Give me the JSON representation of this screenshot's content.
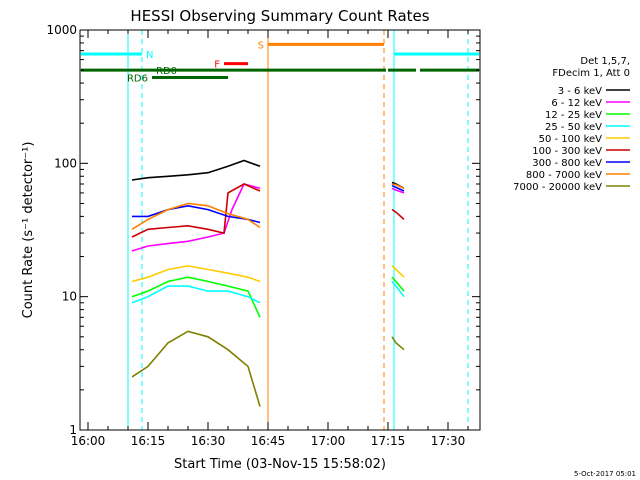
{
  "chart_data": {
    "type": "line",
    "title": "HESSI Observing Summary Count Rates",
    "xlabel": "Start Time (03-Nov-15 15:58:02)",
    "ylabel": "Count Rate (s⁻¹ detector⁻¹)",
    "yscale": "log",
    "ylim": [
      1,
      1000
    ],
    "xlim_min": [
      -2,
      98
    ],
    "x_ticks": [
      {
        "m": 0,
        "label": "16:00"
      },
      {
        "m": 15,
        "label": "16:15"
      },
      {
        "m": 30,
        "label": "16:30"
      },
      {
        "m": 45,
        "label": "16:45"
      },
      {
        "m": 60,
        "label": "17:00"
      },
      {
        "m": 75,
        "label": "17:15"
      },
      {
        "m": 90,
        "label": "17:30"
      }
    ],
    "y_ticks": [
      {
        "v": 1,
        "label": "1"
      },
      {
        "v": 10,
        "label": "10"
      },
      {
        "v": 100,
        "label": "100"
      },
      {
        "v": 1000,
        "label": "1000"
      }
    ],
    "legend_header": [
      "Det 1,5,7,",
      "FDecim 1, Att 0"
    ],
    "legend_position": "right",
    "footer": "5-Oct-2017 05:01",
    "series": [
      {
        "name": "3 - 6 keV",
        "color": "#000000",
        "segments": [
          [
            [
              11,
              75
            ],
            [
              15,
              78
            ],
            [
              20,
              80
            ],
            [
              25,
              82
            ],
            [
              30,
              85
            ],
            [
              35,
              95
            ],
            [
              39,
              105
            ],
            [
              43,
              95
            ]
          ],
          [
            [
              76,
              72
            ],
            [
              77,
              70
            ],
            [
              79,
              65
            ]
          ]
        ]
      },
      {
        "name": "6 - 12 keV",
        "color": "#ff00ff",
        "segments": [
          [
            [
              11,
              22
            ],
            [
              15,
              24
            ],
            [
              20,
              25
            ],
            [
              25,
              26
            ],
            [
              30,
              28
            ],
            [
              34,
              30
            ],
            [
              36,
              45
            ],
            [
              39,
              70
            ],
            [
              43,
              65
            ]
          ],
          [
            [
              76,
              65
            ],
            [
              77,
              63
            ],
            [
              79,
              60
            ]
          ]
        ]
      },
      {
        "name": "12 - 25 keV",
        "color": "#00ff00",
        "segments": [
          [
            [
              11,
              10
            ],
            [
              15,
              11
            ],
            [
              20,
              13
            ],
            [
              25,
              14
            ],
            [
              30,
              13
            ],
            [
              35,
              12
            ],
            [
              40,
              11
            ],
            [
              43,
              7
            ]
          ],
          [
            [
              76,
              14
            ],
            [
              77,
              13
            ],
            [
              79,
              11
            ]
          ]
        ]
      },
      {
        "name": "25 - 50 keV",
        "color": "#00ffff",
        "segments": [
          [
            [
              11,
              9
            ],
            [
              15,
              10
            ],
            [
              20,
              12
            ],
            [
              25,
              12
            ],
            [
              30,
              11
            ],
            [
              35,
              11
            ],
            [
              40,
              10
            ],
            [
              43,
              9
            ]
          ],
          [
            [
              76,
              13
            ],
            [
              77,
              12
            ],
            [
              79,
              10
            ]
          ]
        ]
      },
      {
        "name": "50 - 100 keV",
        "color": "#ffcc00",
        "segments": [
          [
            [
              11,
              13
            ],
            [
              15,
              14
            ],
            [
              20,
              16
            ],
            [
              25,
              17
            ],
            [
              30,
              16
            ],
            [
              35,
              15
            ],
            [
              40,
              14
            ],
            [
              43,
              13
            ]
          ],
          [
            [
              76,
              17
            ],
            [
              77,
              16
            ],
            [
              79,
              14
            ]
          ]
        ]
      },
      {
        "name": "100 - 300 keV",
        "color": "#cc0000",
        "segments": [
          [
            [
              11,
              28
            ],
            [
              15,
              32
            ],
            [
              20,
              33
            ],
            [
              25,
              34
            ],
            [
              30,
              32
            ],
            [
              34,
              30
            ],
            [
              35,
              60
            ],
            [
              39,
              70
            ],
            [
              43,
              62
            ]
          ],
          [
            [
              76,
              45
            ],
            [
              77,
              43
            ],
            [
              79,
              38
            ]
          ]
        ]
      },
      {
        "name": "300 - 800 keV",
        "color": "#0000ff",
        "segments": [
          [
            [
              11,
              40
            ],
            [
              15,
              40
            ],
            [
              20,
              45
            ],
            [
              25,
              48
            ],
            [
              30,
              45
            ],
            [
              35,
              40
            ],
            [
              40,
              38
            ],
            [
              43,
              36
            ]
          ],
          [
            [
              76,
              68
            ],
            [
              77,
              66
            ],
            [
              79,
              62
            ]
          ]
        ]
      },
      {
        "name": "800 - 7000 keV",
        "color": "#ff8000",
        "segments": [
          [
            [
              11,
              32
            ],
            [
              15,
              38
            ],
            [
              20,
              45
            ],
            [
              25,
              50
            ],
            [
              30,
              48
            ],
            [
              35,
              42
            ],
            [
              40,
              38
            ],
            [
              43,
              33
            ]
          ],
          [
            [
              76,
              70
            ],
            [
              77,
              69
            ],
            [
              79,
              65
            ]
          ]
        ]
      },
      {
        "name": "7000 - 20000 keV",
        "color": "#808000",
        "segments": [
          [
            [
              11,
              2.5
            ],
            [
              15,
              3
            ],
            [
              20,
              4.5
            ],
            [
              25,
              5.5
            ],
            [
              30,
              5
            ],
            [
              35,
              4
            ],
            [
              40,
              3
            ],
            [
              43,
              1.5
            ]
          ],
          [
            [
              76,
              5
            ],
            [
              77,
              4.5
            ],
            [
              79,
              4
            ]
          ]
        ]
      }
    ],
    "flags": [
      {
        "label": "N",
        "color": "#00ffff",
        "y": 660,
        "segments": [
          [
            -2,
            13.5
          ],
          [
            76.5,
            98
          ]
        ]
      },
      {
        "label": "F",
        "color": "#ff0000",
        "y": 560,
        "segments": [
          [
            34,
            40
          ]
        ]
      },
      {
        "label": "S",
        "color": "#ff8000",
        "y": 780,
        "segments": [
          [
            45,
            74
          ]
        ]
      },
      {
        "label": "RD0",
        "color": "#006400",
        "y": 500,
        "segments": [
          [
            -2,
            74.5
          ],
          [
            75,
            82
          ],
          [
            83,
            98
          ]
        ]
      },
      {
        "label": "RD6",
        "color": "#006400",
        "y": 440,
        "segments": [
          [
            16,
            35
          ]
        ]
      }
    ],
    "vlines": [
      {
        "m": 10,
        "color": "#00ffff",
        "dash": false
      },
      {
        "m": 13.5,
        "color": "#00ffff",
        "dash": true
      },
      {
        "m": 45,
        "color": "#ff8000",
        "dash": false
      },
      {
        "m": 74,
        "color": "#ff8000",
        "dash": true
      },
      {
        "m": 76.5,
        "color": "#00ffff",
        "dash": false
      },
      {
        "m": 95,
        "color": "#00ffff",
        "dash": true
      }
    ]
  }
}
